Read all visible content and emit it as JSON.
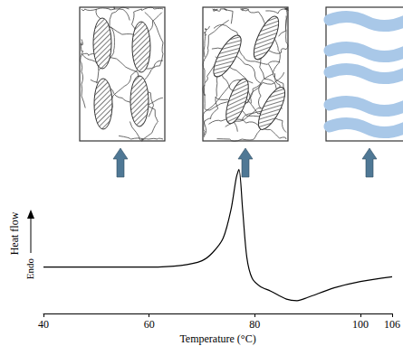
{
  "chart_data": {
    "type": "line",
    "x": [
      40,
      50,
      60,
      66,
      70,
      72,
      74,
      75.5,
      76.5,
      77,
      77.7,
      78.5,
      79.5,
      81,
      83,
      86,
      88,
      90,
      95,
      100,
      106
    ],
    "values": [
      2.9,
      2.9,
      2.9,
      3.0,
      3.3,
      3.8,
      4.7,
      6.5,
      8.5,
      9.0,
      6.5,
      3.5,
      2.2,
      1.7,
      1.4,
      0.9,
      0.8,
      1.0,
      1.6,
      2.0,
      2.3
    ],
    "color": "#000000",
    "xlabel": "Temperature (°C)",
    "ylabel": "Heat flow",
    "annotations": [
      "Endo"
    ],
    "xlim": [
      40,
      106
    ],
    "xticks": [
      40,
      60,
      80,
      100
    ],
    "ylim": [
      0,
      10
    ],
    "tick_labels": "x",
    "grid": false
  }
}
